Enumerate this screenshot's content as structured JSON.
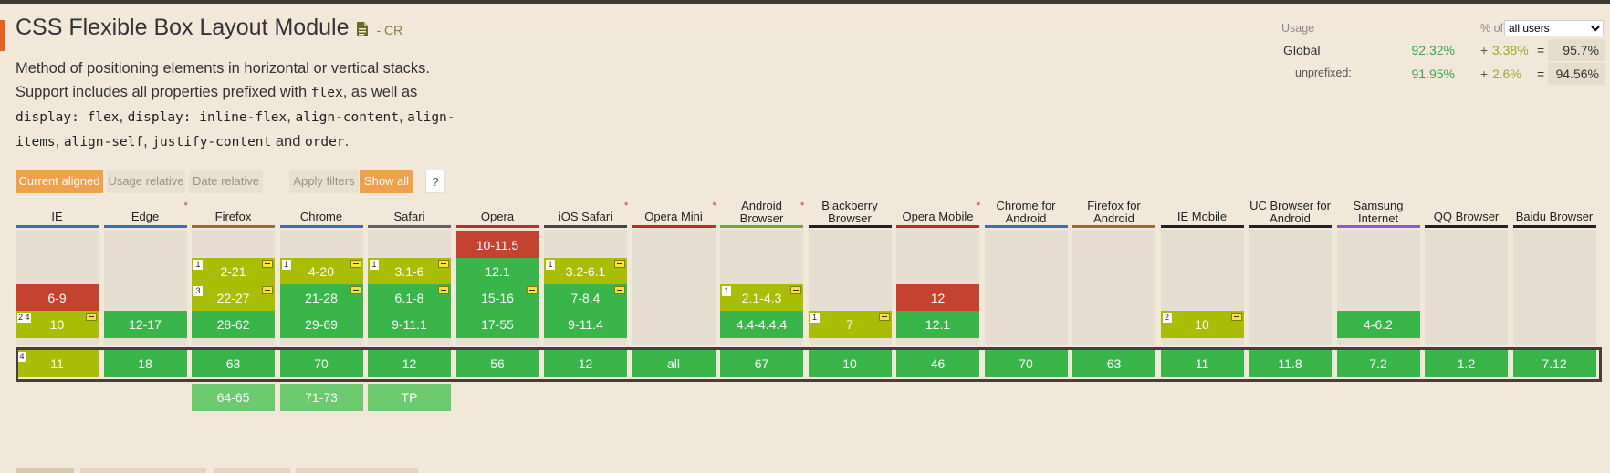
{
  "feature": {
    "title": "CSS Flexible Box Layout Module",
    "status": "- CR",
    "desc": {
      "line1": "Method of positioning elements in horizontal or vertical stacks.",
      "line2a": "Support includes all properties prefixed with ",
      "code_flex": "flex",
      "line2b": ", as well as",
      "code_display_flex": "display: flex",
      "sep1": ", ",
      "code_display_inline": "display: inline-flex",
      "sep2": ", ",
      "code_align_content": "align-content",
      "sep3": ", ",
      "code_align_items_1": "align-",
      "code_align_items_2": "items",
      "sep4": ", ",
      "code_align_self": "align-self",
      "sep5": ", ",
      "code_justify": "justify-content",
      "and_text": " and ",
      "code_order": "order",
      "end": "."
    }
  },
  "usage": {
    "label": "Usage",
    "pct_of": "% of",
    "selected": "all users",
    "global": {
      "label": "Global",
      "supported": "92.32%",
      "plus": "+",
      "partial": "3.38%",
      "eq": "=",
      "total": "95.7%"
    },
    "unprefixed": {
      "label": "unprefixed:",
      "supported": "91.95%",
      "plus": "+",
      "partial": "2.6%",
      "eq": "=",
      "total": "94.56%"
    }
  },
  "filters": {
    "current_aligned": "Current aligned",
    "usage_relative": "Usage relative",
    "date_relative": "Date relative",
    "apply_filters": "Apply filters",
    "show_all": "Show all",
    "help": "?"
  },
  "colors": {
    "supported": "#39b54a",
    "unsupported": "#c44230",
    "partial": "#a8bd04",
    "future": "#6cc96e"
  },
  "browsers": [
    {
      "name": "IE",
      "line": "#3e6fb5",
      "star": false,
      "past": [
        {
          "v": "6-9",
          "s": "n",
          "row": 2
        },
        {
          "v": "10",
          "s": "a",
          "row": 3,
          "note": "2 4",
          "pfx": true
        }
      ],
      "current": {
        "v": "11",
        "s": "a",
        "note": "4"
      },
      "future": []
    },
    {
      "name": "Edge",
      "line": "#3e6fb5",
      "star": true,
      "past": [
        {
          "v": "12-17",
          "s": "y",
          "row": 3
        }
      ],
      "current": {
        "v": "18",
        "s": "y"
      },
      "future": []
    },
    {
      "name": "Firefox",
      "line": "#a36c2c",
      "star": false,
      "past": [
        {
          "v": "2-21",
          "s": "a",
          "row": 1,
          "note": "1",
          "pfx": true
        },
        {
          "v": "22-27",
          "s": "a",
          "row": 2,
          "note": "3",
          "pfx": true
        },
        {
          "v": "28-62",
          "s": "y",
          "row": 3
        }
      ],
      "current": {
        "v": "63",
        "s": "y"
      },
      "future": [
        "64-65"
      ]
    },
    {
      "name": "Chrome",
      "line": "#3e6fb5",
      "star": false,
      "past": [
        {
          "v": "4-20",
          "s": "a",
          "row": 1,
          "note": "1",
          "pfx": true
        },
        {
          "v": "21-28",
          "s": "y",
          "row": 2,
          "pfx": true
        },
        {
          "v": "29-69",
          "s": "y",
          "row": 3
        }
      ],
      "current": {
        "v": "70",
        "s": "y"
      },
      "future": [
        "71-73"
      ]
    },
    {
      "name": "Safari",
      "line": "#636363",
      "star": false,
      "past": [
        {
          "v": "3.1-6",
          "s": "a",
          "row": 1,
          "note": "1",
          "pfx": true
        },
        {
          "v": "6.1-8",
          "s": "y",
          "row": 2,
          "pfx": true
        },
        {
          "v": "9-11.1",
          "s": "y",
          "row": 3
        }
      ],
      "current": {
        "v": "12",
        "s": "y"
      },
      "future": [
        "TP"
      ]
    },
    {
      "name": "Opera",
      "line": "#b82f2f",
      "star": false,
      "past": [
        {
          "v": "10-11.5",
          "s": "n",
          "row": 0
        },
        {
          "v": "12.1",
          "s": "y",
          "row": 1
        },
        {
          "v": "15-16",
          "s": "y",
          "row": 2,
          "pfx": true
        },
        {
          "v": "17-55",
          "s": "y",
          "row": 3
        }
      ],
      "current": {
        "v": "56",
        "s": "y"
      },
      "future": []
    },
    {
      "name": "iOS Safari",
      "line": "#454545",
      "star": true,
      "past": [
        {
          "v": "3.2-6.1",
          "s": "a",
          "row": 1,
          "note": "1",
          "pfx": true
        },
        {
          "v": "7-8.4",
          "s": "y",
          "row": 2,
          "pfx": true
        },
        {
          "v": "9-11.4",
          "s": "y",
          "row": 3
        }
      ],
      "current": {
        "v": "12",
        "s": "y"
      },
      "future": []
    },
    {
      "name": "Opera Mini",
      "line": "#b82f2f",
      "star": true,
      "past": [],
      "current": {
        "v": "all",
        "s": "y"
      },
      "future": []
    },
    {
      "name": "Android Browser",
      "line": "#7ca13a",
      "star": true,
      "past": [
        {
          "v": "2.1-4.3",
          "s": "a",
          "row": 2,
          "note": "1",
          "pfx": true
        },
        {
          "v": "4.4-4.4.4",
          "s": "y",
          "row": 3
        }
      ],
      "current": {
        "v": "67",
        "s": "y"
      },
      "future": []
    },
    {
      "name": "Blackberry Browser",
      "line": "#222222",
      "star": false,
      "past": [
        {
          "v": "7",
          "s": "a",
          "row": 3,
          "note": "1",
          "pfx": true
        }
      ],
      "current": {
        "v": "10",
        "s": "y"
      },
      "future": []
    },
    {
      "name": "Opera Mobile",
      "line": "#b82f2f",
      "star": true,
      "past": [
        {
          "v": "12",
          "s": "n",
          "row": 2
        },
        {
          "v": "12.1",
          "s": "y",
          "row": 3
        }
      ],
      "current": {
        "v": "46",
        "s": "y"
      },
      "future": []
    },
    {
      "name": "Chrome for Android",
      "line": "#3e6fb5",
      "star": false,
      "past": [],
      "current": {
        "v": "70",
        "s": "y"
      },
      "future": []
    },
    {
      "name": "Firefox for Android",
      "line": "#a36c2c",
      "star": false,
      "past": [],
      "current": {
        "v": "63",
        "s": "y"
      },
      "future": []
    },
    {
      "name": "IE Mobile",
      "line": "#222222",
      "star": false,
      "past": [
        {
          "v": "10",
          "s": "a",
          "row": 3,
          "note": "2",
          "pfx": true
        }
      ],
      "current": {
        "v": "11",
        "s": "y"
      },
      "future": []
    },
    {
      "name": "UC Browser for Android",
      "line": "#222222",
      "star": false,
      "past": [],
      "current": {
        "v": "11.8",
        "s": "y"
      },
      "future": []
    },
    {
      "name": "Samsung Internet",
      "line": "#8a5ad6",
      "star": false,
      "past": [
        {
          "v": "4-6.2",
          "s": "y",
          "row": 3
        }
      ],
      "current": {
        "v": "7.2",
        "s": "y"
      },
      "future": []
    },
    {
      "name": "QQ Browser",
      "line": "#222222",
      "star": false,
      "past": [],
      "current": {
        "v": "1.2",
        "s": "y"
      },
      "future": []
    },
    {
      "name": "Baidu Browser",
      "line": "#222222",
      "star": false,
      "past": [],
      "current": {
        "v": "7.12",
        "s": "y"
      },
      "future": []
    }
  ]
}
